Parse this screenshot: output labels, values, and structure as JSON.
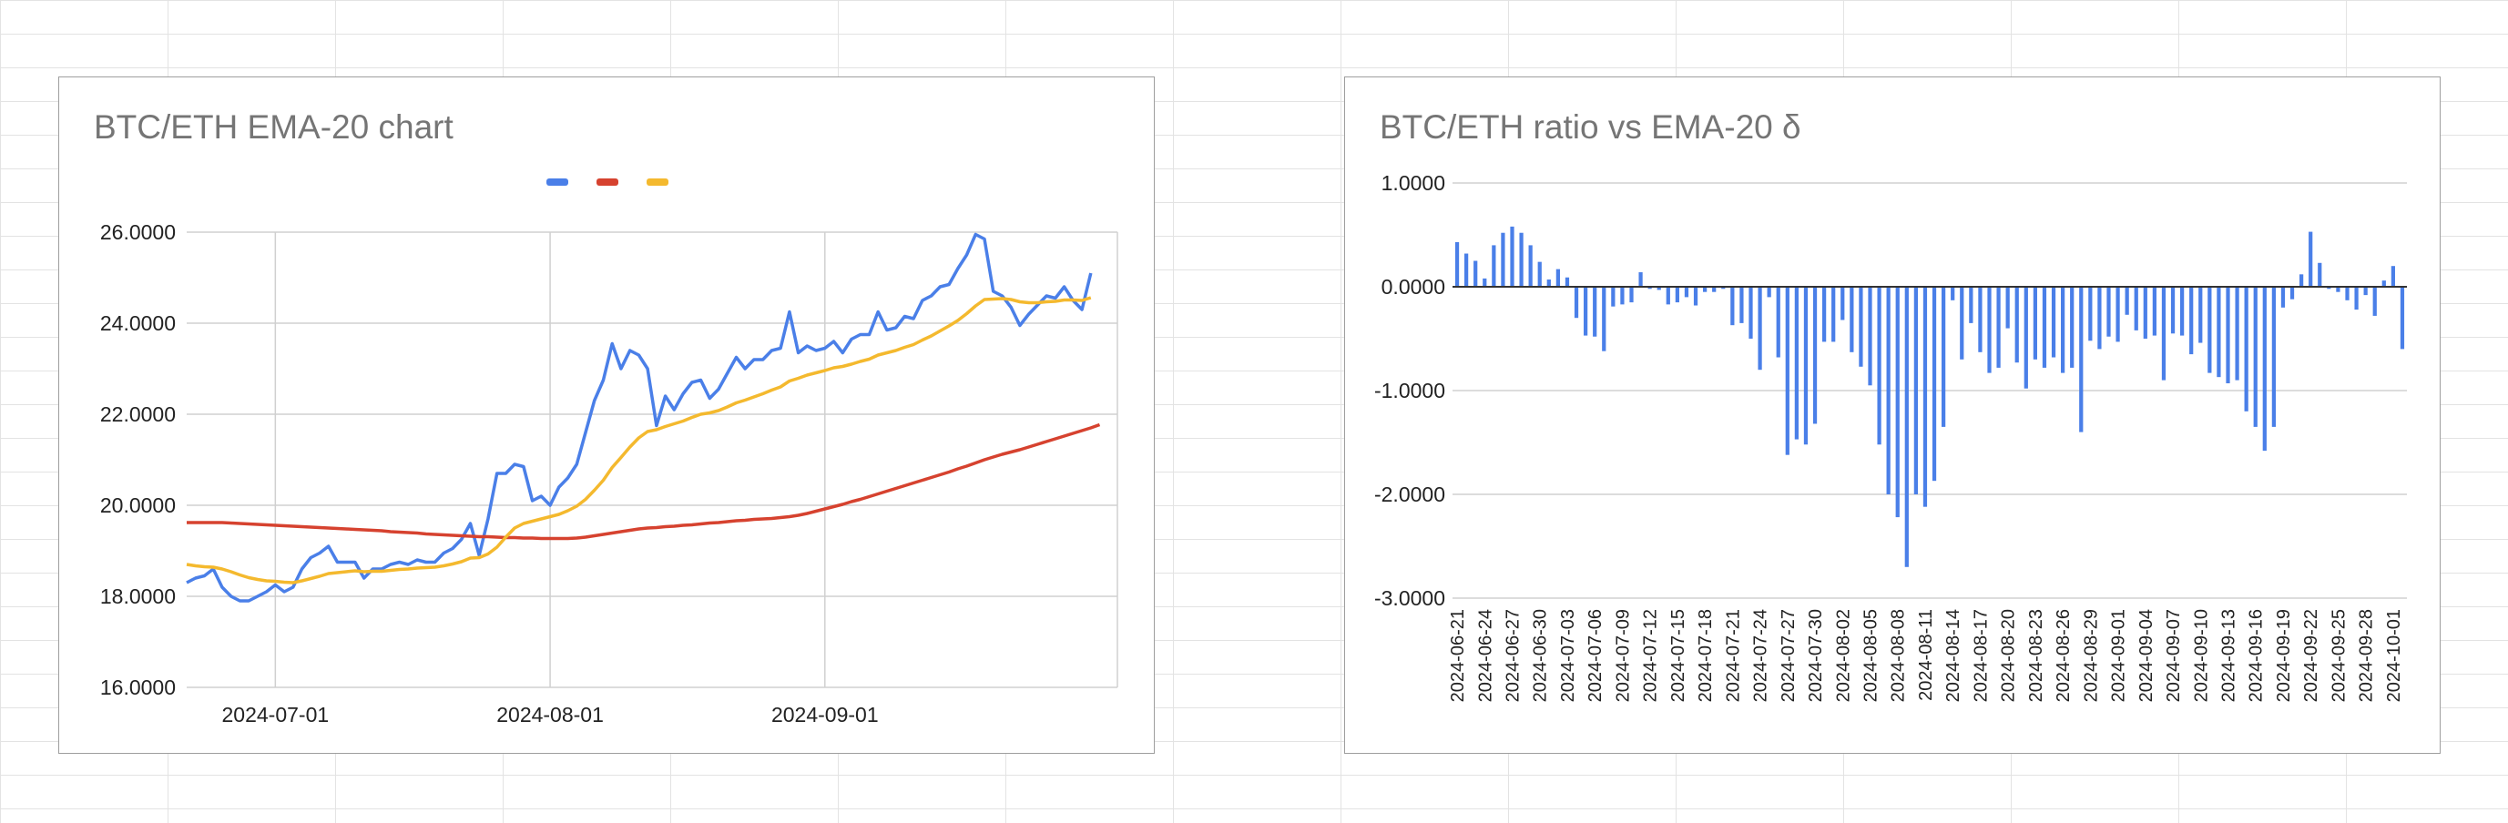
{
  "colors": {
    "ratio": "#4a7fe8",
    "ema20": "#f4b92e",
    "ema200": "#d6422f",
    "bar": "#4a7fe8",
    "grid": "#d0d0d0",
    "title": "#757575"
  },
  "chart_data": [
    {
      "type": "line",
      "title": "BTC/ETH EMA-20 chart",
      "xlabel": "",
      "ylabel": "",
      "legend": "top-center",
      "grid": true,
      "ylim": [
        16,
        26
      ],
      "xlim": [
        "2024-06-21",
        "2024-10-04"
      ],
      "yticks": [
        "16.0000",
        "18.0000",
        "20.0000",
        "22.0000",
        "24.0000",
        "26.0000"
      ],
      "xticks": [
        {
          "date": "2024-07-01",
          "label": "2024-07-01"
        },
        {
          "date": "2024-08-01",
          "label": "2024-08-01"
        },
        {
          "date": "2024-09-01",
          "label": "2024-09-01"
        }
      ],
      "x_start": "2024-06-21",
      "series": [
        {
          "key": "ratio",
          "values": [
            18.3,
            18.4,
            18.45,
            18.6,
            18.2,
            18.0,
            17.9,
            17.9,
            18.0,
            18.1,
            18.25,
            18.1,
            18.2,
            18.6,
            18.85,
            18.95,
            19.1,
            18.75,
            18.75,
            18.75,
            18.4,
            18.6,
            18.6,
            18.7,
            18.75,
            18.7,
            18.8,
            18.75,
            18.75,
            18.95,
            19.05,
            19.25,
            19.6,
            18.9,
            19.7,
            20.7,
            20.7,
            20.9,
            20.85,
            20.1,
            20.2,
            20.0,
            20.4,
            20.6,
            20.9,
            21.6,
            22.3,
            22.75,
            23.55,
            23.0,
            23.4,
            23.3,
            23.0,
            21.75,
            22.4,
            22.1,
            22.45,
            22.7,
            22.75,
            22.35,
            22.55,
            22.9,
            23.25,
            23.0,
            23.2,
            23.2,
            23.4,
            23.45,
            24.25,
            23.35,
            23.5,
            23.4,
            23.45,
            23.6,
            23.35,
            23.65,
            23.75,
            23.75,
            24.25,
            23.85,
            23.9,
            24.15,
            24.1,
            24.5,
            24.6,
            24.8,
            24.85,
            25.2,
            25.5,
            25.95,
            25.85,
            24.7,
            24.6,
            24.35,
            23.95,
            24.2,
            24.4,
            24.6,
            24.55,
            24.8,
            24.5,
            24.3,
            25.1
          ]
        },
        {
          "key": "ema200",
          "values": [
            19.62,
            19.62,
            19.62,
            19.62,
            19.62,
            19.61,
            19.6,
            19.59,
            19.58,
            19.57,
            19.56,
            19.55,
            19.54,
            19.53,
            19.52,
            19.51,
            19.5,
            19.49,
            19.48,
            19.47,
            19.46,
            19.45,
            19.44,
            19.42,
            19.41,
            19.4,
            19.39,
            19.37,
            19.36,
            19.35,
            19.34,
            19.33,
            19.32,
            19.31,
            19.31,
            19.3,
            19.29,
            19.29,
            19.28,
            19.28,
            19.27,
            19.27,
            19.27,
            19.27,
            19.28,
            19.3,
            19.33,
            19.36,
            19.39,
            19.42,
            19.45,
            19.48,
            19.5,
            19.51,
            19.53,
            19.54,
            19.56,
            19.57,
            19.59,
            19.61,
            19.62,
            19.64,
            19.66,
            19.67,
            19.69,
            19.7,
            19.71,
            19.73,
            19.75,
            19.78,
            19.82,
            19.87,
            19.92,
            19.97,
            20.02,
            20.08,
            20.13,
            20.19,
            20.25,
            20.31,
            20.37,
            20.43,
            20.49,
            20.55,
            20.61,
            20.67,
            20.73,
            20.8,
            20.86,
            20.93,
            21.0,
            21.06,
            21.12,
            21.17,
            21.22,
            21.28,
            21.34,
            21.4,
            21.46,
            21.52,
            21.58,
            21.64,
            21.7,
            21.77
          ]
        },
        {
          "key": "ema20",
          "values": [
            18.7,
            18.67,
            18.65,
            18.64,
            18.6,
            18.54,
            18.47,
            18.41,
            18.37,
            18.34,
            18.33,
            18.31,
            18.3,
            18.34,
            18.39,
            18.44,
            18.5,
            18.52,
            18.54,
            18.56,
            18.54,
            18.55,
            18.55,
            18.57,
            18.59,
            18.6,
            18.62,
            18.63,
            18.64,
            18.67,
            18.71,
            18.76,
            18.84,
            18.85,
            18.93,
            19.08,
            19.3,
            19.5,
            19.6,
            19.65,
            19.7,
            19.75,
            19.8,
            19.88,
            19.98,
            20.13,
            20.33,
            20.55,
            20.83,
            21.05,
            21.28,
            21.48,
            21.62,
            21.66,
            21.73,
            21.79,
            21.85,
            21.93,
            22.0,
            22.03,
            22.08,
            22.16,
            22.25,
            22.31,
            22.38,
            22.45,
            22.53,
            22.6,
            22.73,
            22.79,
            22.86,
            22.91,
            22.96,
            23.02,
            23.05,
            23.1,
            23.16,
            23.21,
            23.3,
            23.35,
            23.4,
            23.47,
            23.53,
            23.63,
            23.72,
            23.83,
            23.94,
            24.06,
            24.21,
            24.38,
            24.52,
            24.53,
            24.54,
            24.52,
            24.47,
            24.45,
            24.45,
            24.47,
            24.48,
            24.51,
            24.51,
            24.5,
            24.56
          ]
        }
      ]
    },
    {
      "type": "bar",
      "title": "BTC/ETH ratio vs EMA-20 δ",
      "xlabel": "",
      "ylabel": "",
      "grid": true,
      "ylim": [
        -3,
        1
      ],
      "yticks": [
        "1.0000",
        "0.0000",
        "-1.0000",
        "-2.0000",
        "-3.0000"
      ],
      "x_start": "2024-06-21",
      "xtick_every": 3,
      "xtick_labels": [
        "2024-06-21",
        "2024-06-24",
        "2024-06-27",
        "2024-06-30",
        "2024-07-03",
        "2024-07-06",
        "2024-07-09",
        "2024-07-12",
        "2024-07-15",
        "2024-07-18",
        "2024-07-21",
        "2024-07-24",
        "2024-07-27",
        "2024-07-30",
        "2024-08-02",
        "2024-08-05",
        "2024-08-08",
        "2024-08-11",
        "2024-08-14",
        "2024-08-17",
        "2024-08-20",
        "2024-08-23",
        "2024-08-26",
        "2024-08-29",
        "2024-09-01",
        "2024-09-04",
        "2024-09-07",
        "2024-09-10",
        "2024-09-13",
        "2024-09-16",
        "2024-09-19",
        "2024-09-22",
        "2024-09-25",
        "2024-09-28",
        "2024-10-01"
      ],
      "values": [
        0.43,
        0.32,
        0.25,
        0.08,
        0.4,
        0.52,
        0.58,
        0.52,
        0.4,
        0.24,
        0.07,
        0.17,
        0.09,
        -0.3,
        -0.47,
        -0.48,
        -0.62,
        -0.19,
        -0.17,
        -0.15,
        0.14,
        -0.02,
        -0.03,
        -0.17,
        -0.15,
        -0.1,
        -0.18,
        -0.05,
        -0.05,
        -0.02,
        -0.37,
        -0.35,
        -0.5,
        -0.8,
        -0.1,
        -0.68,
        -1.62,
        -1.47,
        -1.52,
        -1.32,
        -0.53,
        -0.53,
        -0.32,
        -0.63,
        -0.77,
        -0.95,
        -1.52,
        -2.0,
        -2.22,
        -2.7,
        -2.0,
        -2.12,
        -1.87,
        -1.35,
        -0.13,
        -0.7,
        -0.35,
        -0.63,
        -0.83,
        -0.78,
        -0.4,
        -0.73,
        -0.98,
        -0.7,
        -0.78,
        -0.68,
        -0.83,
        -0.78,
        -1.4,
        -0.52,
        -0.6,
        -0.48,
        -0.53,
        -0.27,
        -0.42,
        -0.5,
        -0.47,
        -0.9,
        -0.45,
        -0.47,
        -0.65,
        -0.54,
        -0.83,
        -0.87,
        -0.93,
        -0.9,
        -1.2,
        -1.35,
        -1.58,
        -1.35,
        -0.2,
        -0.12,
        0.12,
        0.53,
        0.23,
        -0.02,
        -0.05,
        -0.13,
        -0.22,
        -0.08,
        -0.28,
        0.06,
        0.2,
        -0.6
      ]
    }
  ]
}
